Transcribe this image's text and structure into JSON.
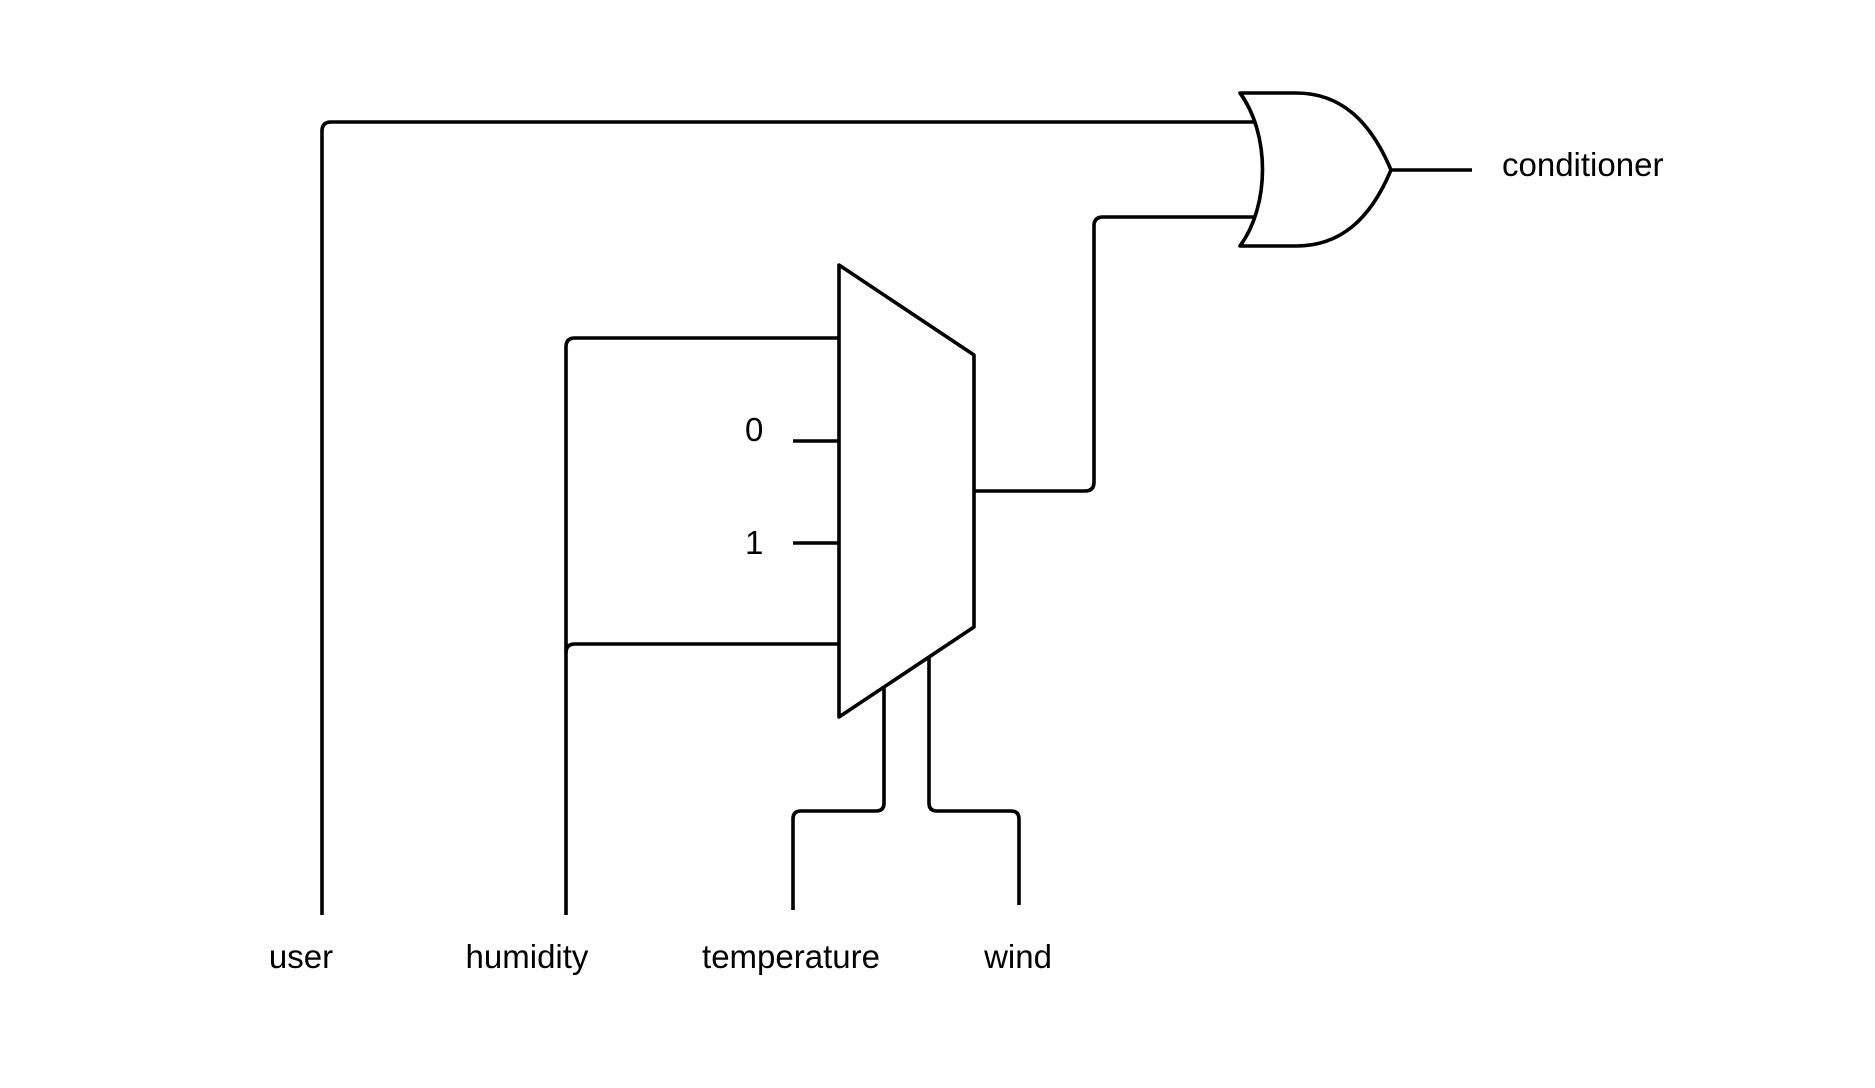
{
  "diagram": {
    "inputs": {
      "user": "user",
      "humidity": "humidity",
      "temperature": "temperature",
      "wind": "wind"
    },
    "output": "conditioner",
    "mux": {
      "input_0_label": "0",
      "input_1_label": "1"
    },
    "colors": {
      "stroke": "#000000",
      "background": "#ffffff"
    }
  }
}
